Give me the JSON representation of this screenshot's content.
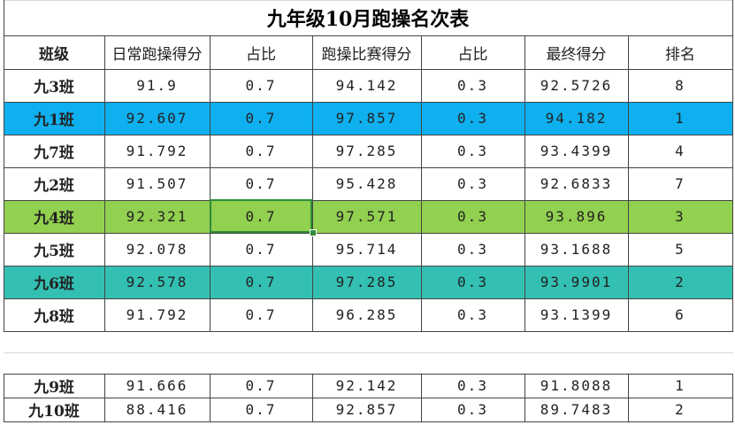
{
  "title": "九年级10月跑操名次表",
  "table": {
    "header": [
      "班级",
      "日常跑操得分",
      "占比",
      "跑操比赛得分",
      "占比",
      "最终得分",
      "排名"
    ],
    "rows": [
      {
        "cells": [
          "九3班",
          "91.9",
          "0.7",
          "94.142",
          "0.3",
          "92.5726",
          "8"
        ]
      },
      {
        "cells": [
          "九1班",
          "92.607",
          "0.7",
          "97.857",
          "0.3",
          "94.182",
          "1"
        ],
        "fill": "#0fb0ef"
      },
      {
        "cells": [
          "九7班",
          "91.792",
          "0.7",
          "97.285",
          "0.3",
          "93.4399",
          "4"
        ]
      },
      {
        "cells": [
          "九2班",
          "91.507",
          "0.7",
          "95.428",
          "0.3",
          "92.6833",
          "7"
        ]
      },
      {
        "cells": [
          "九4班",
          "92.321",
          "0.7",
          "97.571",
          "0.3",
          "93.896",
          "3"
        ],
        "fill": "#92d050"
      },
      {
        "cells": [
          "九5班",
          "92.078",
          "0.7",
          "95.714",
          "0.3",
          "93.1688",
          "5"
        ]
      },
      {
        "cells": [
          "九6班",
          "92.578",
          "0.7",
          "97.285",
          "0.3",
          "93.9901",
          "2"
        ],
        "fill": "#33c0b3"
      },
      {
        "cells": [
          "九8班",
          "91.792",
          "0.7",
          "96.285",
          "0.3",
          "93.1399",
          "6"
        ]
      }
    ],
    "extra_rows": [
      {
        "cells": [
          "九9班",
          "91.666",
          "0.7",
          "92.142",
          "0.3",
          "91.8088",
          "1"
        ]
      },
      {
        "cells": [
          "九10班",
          "88.416",
          "0.7",
          "92.857",
          "0.3",
          "89.7483",
          "2"
        ]
      }
    ]
  }
}
